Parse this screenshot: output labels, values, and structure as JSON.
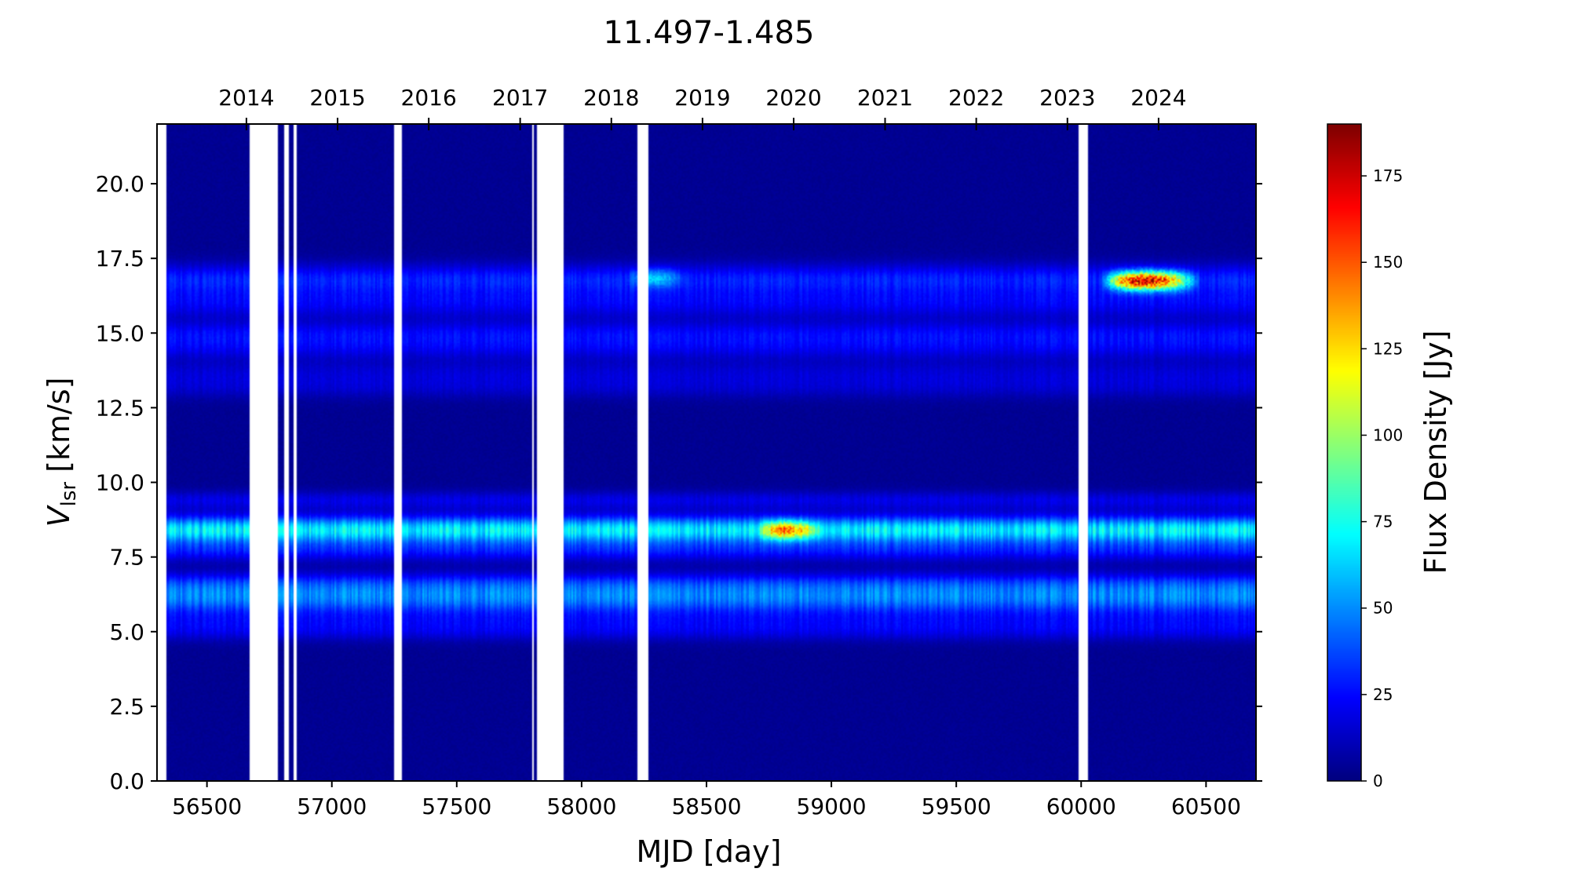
{
  "chart_data": {
    "type": "heatmap",
    "title": "11.497-1.485",
    "xlabel": "MJD [day]",
    "ylabel_main": "V",
    "ylabel_sub": "lsr",
    "ylabel_rest": " [km/s]",
    "colorbar_label": "Flux Density [Jy]",
    "colormap": "jet",
    "xlim": [
      56300,
      60700
    ],
    "ylim": [
      0,
      22
    ],
    "clim": [
      0,
      190
    ],
    "x_ticks": [
      56500,
      57000,
      57500,
      58000,
      58500,
      59000,
      59500,
      60000,
      60500
    ],
    "x_tick_labels": [
      "56500",
      "57000",
      "57500",
      "58000",
      "58500",
      "59000",
      "59500",
      "60000",
      "60500"
    ],
    "y_ticks": [
      0,
      2.5,
      5,
      7.5,
      10,
      12.5,
      15,
      17.5,
      20
    ],
    "y_tick_labels": [
      "0.0",
      "2.5",
      "5.0",
      "7.5",
      "10.0",
      "12.5",
      "15.0",
      "17.5",
      "20.0"
    ],
    "top_axis": {
      "labels": [
        "2014",
        "2015",
        "2016",
        "2017",
        "2018",
        "2019",
        "2020",
        "2021",
        "2022",
        "2023",
        "2024"
      ],
      "mjd": [
        56658,
        57023,
        57388,
        57754,
        58119,
        58484,
        58849,
        59215,
        59580,
        59945,
        60310
      ]
    },
    "colorbar_ticks": [
      0,
      25,
      50,
      75,
      100,
      125,
      150,
      175
    ],
    "colorbar_tick_labels": [
      "0",
      "25",
      "50",
      "75",
      "100",
      "125",
      "150",
      "175"
    ],
    "gaps_mjd": [
      [
        56300,
        56335
      ],
      [
        56670,
        56785
      ],
      [
        56810,
        56825
      ],
      [
        56845,
        56860
      ],
      [
        57250,
        57280
      ],
      [
        57800,
        57810
      ],
      [
        57820,
        57925
      ],
      [
        58225,
        58265
      ],
      [
        59990,
        60000
      ],
      [
        60005,
        60030
      ]
    ],
    "bands": [
      {
        "v": 16.8,
        "width": 0.5,
        "flux": 25
      },
      {
        "v": 16.0,
        "width": 0.5,
        "flux": 18
      },
      {
        "v": 15.0,
        "width": 0.4,
        "flux": 18
      },
      {
        "v": 14.5,
        "width": 0.4,
        "flux": 15
      },
      {
        "v": 13.7,
        "width": 0.4,
        "flux": 10
      },
      {
        "v": 13.2,
        "width": 0.4,
        "flux": 10
      },
      {
        "v": 9.4,
        "width": 0.3,
        "flux": 15
      },
      {
        "v": 8.4,
        "width": 0.45,
        "flux": 65
      },
      {
        "v": 7.7,
        "width": 0.35,
        "flux": 20
      },
      {
        "v": 6.6,
        "width": 0.4,
        "flux": 25
      },
      {
        "v": 6.1,
        "width": 0.45,
        "flux": 38
      },
      {
        "v": 5.4,
        "width": 0.45,
        "flux": 15
      },
      {
        "v": 5.0,
        "width": 0.35,
        "flux": 10
      }
    ],
    "flares": [
      {
        "mjd_start": 58700,
        "mjd_end": 59000,
        "v": 8.4,
        "flux": 95
      },
      {
        "mjd_start": 58180,
        "mjd_end": 58450,
        "v": 16.85,
        "flux": 40
      },
      {
        "mjd_start": 60080,
        "mjd_end": 60520,
        "v": 16.75,
        "flux": 185
      }
    ]
  }
}
